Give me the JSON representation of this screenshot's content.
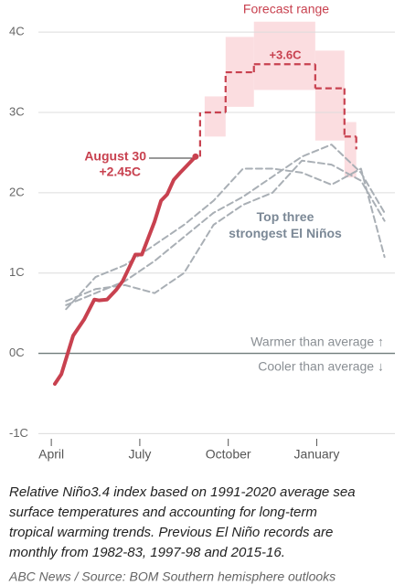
{
  "chart_data": {
    "type": "line",
    "xlim": [
      -0.5,
      11.9
    ],
    "xticks": [
      {
        "value": 0,
        "label": "April"
      },
      {
        "value": 3,
        "label": "July"
      },
      {
        "value": 6,
        "label": "October"
      },
      {
        "value": 9,
        "label": "January"
      }
    ],
    "ylim": [
      -1.2,
      4.4
    ],
    "yticks": [
      {
        "value": -1,
        "label": "-1C"
      },
      {
        "value": 0,
        "label": "0C"
      },
      {
        "value": 1,
        "label": "1C"
      },
      {
        "value": 2,
        "label": "2C"
      },
      {
        "value": 3,
        "label": "3C"
      },
      {
        "value": 4,
        "label": "4C"
      }
    ],
    "grid": true,
    "series": [
      {
        "name": "Top three strongest El Niños",
        "color": "#a9afb5",
        "style": "dashed",
        "x": [
          0.5,
          1.5,
          2.5,
          3.5,
          4.5,
          5.5,
          6.5,
          7.5,
          8.5,
          9.5,
          10.5,
          11.3
        ],
        "values": [
          0.6,
          0.75,
          0.9,
          1.15,
          1.45,
          1.75,
          1.95,
          2.2,
          2.45,
          2.6,
          2.25,
          1.75
        ]
      },
      {
        "name": "Top three strongest El Niños",
        "color": "#a9afb5",
        "style": "dashed",
        "x": [
          0.5,
          1.5,
          2.5,
          3.5,
          4.5,
          5.5,
          6.5,
          7.5,
          8.5,
          9.5,
          10.5,
          11.3
        ],
        "values": [
          0.55,
          0.95,
          1.1,
          1.35,
          1.6,
          1.9,
          2.3,
          2.3,
          2.25,
          2.1,
          2.3,
          1.2
        ]
      },
      {
        "name": "Top three strongest El Niños",
        "color": "#a9afb5",
        "style": "dashed",
        "x": [
          0.5,
          1.5,
          2.5,
          3.5,
          4.5,
          5.5,
          6.5,
          7.5,
          8.5,
          9.5,
          10.5,
          11.3
        ],
        "values": [
          0.65,
          0.8,
          0.85,
          0.75,
          1.0,
          1.6,
          1.85,
          2.0,
          2.4,
          2.35,
          2.15,
          1.65
        ]
      },
      {
        "name": "August 30",
        "color": "#c8414f",
        "style": "solid",
        "x": [
          0.12,
          0.34,
          0.74,
          1.11,
          1.46,
          1.61,
          1.89,
          2.2,
          2.42,
          2.63,
          2.85,
          3.07,
          3.28,
          3.5,
          3.72,
          3.93,
          4.15,
          4.37,
          4.58,
          4.89
        ],
        "values": [
          -0.38,
          -0.26,
          0.22,
          0.42,
          0.67,
          0.66,
          0.67,
          0.79,
          0.9,
          1.06,
          1.23,
          1.23,
          1.43,
          1.64,
          1.9,
          1.98,
          2.16,
          2.25,
          2.33,
          2.45
        ],
        "value_label": "+2.45C"
      }
    ],
    "forecast": {
      "name": "Forecast range",
      "color": "#c8414f",
      "range_color": "#fbdde0",
      "bins": [
        5.2,
        5.91,
        6.87,
        8.95,
        9.94,
        10.34
      ],
      "values": [
        3.0,
        3.5,
        3.6,
        3.3,
        2.7
      ],
      "range_low": [
        2.7,
        3.07,
        3.28,
        2.65,
        2.19
      ],
      "range_high": [
        3.2,
        3.94,
        4.13,
        3.77,
        2.88
      ],
      "peak_label": "+3.6C"
    },
    "annotations": [
      "Warmer than average ↑",
      "Cooler than average ↓"
    ],
    "caption": [
      "Relative Niño3.4 index based on 1991-2020 average sea",
      "surface temperatures and accounting for long-term",
      "tropical warming trends. Previous El Niño records are",
      "monthly from 1982-83, 1997-98 and 2015-16."
    ],
    "source": "ABC News / Source: BOM Southern hemisphere outlooks"
  }
}
